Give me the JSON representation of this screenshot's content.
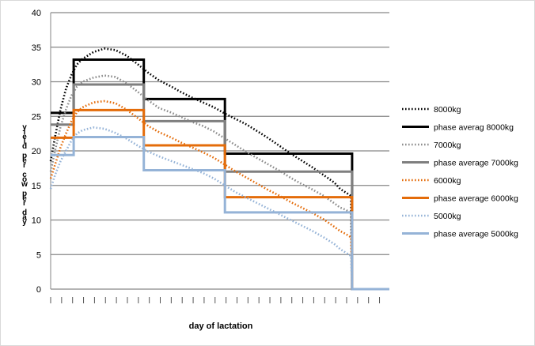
{
  "chart_data": {
    "type": "line",
    "title": "",
    "xlabel": "day of lactation",
    "ylabel": "yield per cow per day",
    "ylim": [
      0,
      40
    ],
    "yticks": [
      0,
      5,
      10,
      15,
      20,
      25,
      30,
      35,
      40
    ],
    "xlim": [
      1,
      310
    ],
    "grid": true,
    "legend_position": "right",
    "series": [
      {
        "name": "8000kg",
        "style": "dotted",
        "color": "#000000",
        "points": [
          [
            1,
            18.5
          ],
          [
            5,
            22
          ],
          [
            10,
            26
          ],
          [
            15,
            29
          ],
          [
            20,
            31
          ],
          [
            25,
            32.5
          ],
          [
            30,
            33.3
          ],
          [
            40,
            34.3
          ],
          [
            50,
            34.8
          ],
          [
            60,
            34.6
          ],
          [
            70,
            33.8
          ],
          [
            80,
            32.6
          ],
          [
            90,
            31.3
          ],
          [
            100,
            30.2
          ],
          [
            110,
            29.4
          ],
          [
            120,
            28.5
          ],
          [
            130,
            27.7
          ],
          [
            140,
            27
          ],
          [
            150,
            26.3
          ],
          [
            160,
            25.4
          ],
          [
            170,
            24.6
          ],
          [
            180,
            23.8
          ],
          [
            190,
            22.8
          ],
          [
            200,
            21.8
          ],
          [
            210,
            20.7
          ],
          [
            220,
            19.6
          ],
          [
            230,
            18.6
          ],
          [
            240,
            17.6
          ],
          [
            250,
            16.5
          ],
          [
            260,
            15.4
          ],
          [
            265,
            14.5
          ],
          [
            270,
            14
          ],
          [
            275,
            13.5
          ],
          [
            276,
            0
          ],
          [
            310,
            0
          ]
        ]
      },
      {
        "name": "phase averag 8000kg",
        "style": "step",
        "color": "#000000",
        "points": [
          [
            1,
            25.5
          ],
          [
            22,
            25.5
          ],
          [
            22,
            33.2
          ],
          [
            86,
            33.2
          ],
          [
            86,
            27.5
          ],
          [
            160,
            27.5
          ],
          [
            160,
            19.6
          ],
          [
            276,
            19.6
          ],
          [
            276,
            0
          ],
          [
            310,
            0
          ]
        ]
      },
      {
        "name": "7000kg",
        "style": "dotted",
        "color": "#8c8c8c",
        "points": [
          [
            1,
            17
          ],
          [
            5,
            20
          ],
          [
            10,
            23.5
          ],
          [
            15,
            26
          ],
          [
            20,
            28
          ],
          [
            25,
            29.3
          ],
          [
            30,
            30
          ],
          [
            40,
            30.6
          ],
          [
            50,
            30.9
          ],
          [
            60,
            30.7
          ],
          [
            70,
            29.8
          ],
          [
            80,
            28.6
          ],
          [
            90,
            27.3
          ],
          [
            100,
            26.2
          ],
          [
            110,
            25.6
          ],
          [
            120,
            24.9
          ],
          [
            130,
            24.2
          ],
          [
            140,
            23.6
          ],
          [
            150,
            22.8
          ],
          [
            160,
            21.8
          ],
          [
            170,
            20.8
          ],
          [
            180,
            19.8
          ],
          [
            190,
            18.9
          ],
          [
            200,
            18
          ],
          [
            210,
            17.1
          ],
          [
            220,
            16.1
          ],
          [
            230,
            15.2
          ],
          [
            240,
            14.4
          ],
          [
            250,
            13.5
          ],
          [
            260,
            12.4
          ],
          [
            265,
            11.8
          ],
          [
            270,
            11.5
          ],
          [
            275,
            11
          ],
          [
            276,
            0
          ],
          [
            310,
            0
          ]
        ]
      },
      {
        "name": "phase average 7000kg",
        "style": "step",
        "color": "#7f7f7f",
        "points": [
          [
            1,
            23.8
          ],
          [
            22,
            23.8
          ],
          [
            22,
            29.6
          ],
          [
            86,
            29.6
          ],
          [
            86,
            24.3
          ],
          [
            160,
            24.3
          ],
          [
            160,
            17
          ],
          [
            276,
            17
          ],
          [
            276,
            0
          ],
          [
            310,
            0
          ]
        ]
      },
      {
        "name": "6000kg",
        "style": "dotted",
        "color": "#e46c0a",
        "points": [
          [
            1,
            16
          ],
          [
            5,
            18
          ],
          [
            10,
            20.5
          ],
          [
            15,
            22.5
          ],
          [
            20,
            24.3
          ],
          [
            25,
            25.6
          ],
          [
            30,
            26.3
          ],
          [
            40,
            27
          ],
          [
            50,
            27.2
          ],
          [
            60,
            26.9
          ],
          [
            70,
            26
          ],
          [
            80,
            24.8
          ],
          [
            90,
            23.6
          ],
          [
            100,
            22.7
          ],
          [
            110,
            22
          ],
          [
            120,
            21.2
          ],
          [
            130,
            20.5
          ],
          [
            140,
            19.8
          ],
          [
            150,
            19
          ],
          [
            160,
            18
          ],
          [
            170,
            17
          ],
          [
            180,
            16.1
          ],
          [
            190,
            15.2
          ],
          [
            200,
            14.3
          ],
          [
            210,
            13.5
          ],
          [
            220,
            12.6
          ],
          [
            230,
            11.8
          ],
          [
            240,
            11
          ],
          [
            250,
            10.1
          ],
          [
            260,
            9
          ],
          [
            265,
            8.4
          ],
          [
            270,
            8
          ],
          [
            275,
            7.5
          ],
          [
            276,
            0
          ],
          [
            310,
            0
          ]
        ]
      },
      {
        "name": "phase average 6000kg",
        "style": "step",
        "color": "#e46c0a",
        "points": [
          [
            1,
            21.9
          ],
          [
            22,
            21.9
          ],
          [
            22,
            25.9
          ],
          [
            86,
            25.9
          ],
          [
            86,
            20.8
          ],
          [
            160,
            20.8
          ],
          [
            160,
            13.3
          ],
          [
            276,
            13.3
          ],
          [
            276,
            0
          ],
          [
            310,
            0
          ]
        ]
      },
      {
        "name": "5000kg",
        "style": "dotted",
        "color": "#95b3d7",
        "points": [
          [
            1,
            14.5
          ],
          [
            5,
            16.5
          ],
          [
            10,
            18.5
          ],
          [
            15,
            20
          ],
          [
            20,
            21.5
          ],
          [
            25,
            22.5
          ],
          [
            30,
            23
          ],
          [
            40,
            23.4
          ],
          [
            50,
            23.2
          ],
          [
            60,
            22.6
          ],
          [
            70,
            21.8
          ],
          [
            80,
            20.8
          ],
          [
            90,
            19.9
          ],
          [
            100,
            19.2
          ],
          [
            110,
            18.6
          ],
          [
            120,
            18
          ],
          [
            130,
            17.4
          ],
          [
            140,
            16.8
          ],
          [
            150,
            16
          ],
          [
            160,
            15
          ],
          [
            170,
            14
          ],
          [
            180,
            13.2
          ],
          [
            190,
            12.4
          ],
          [
            200,
            11.6
          ],
          [
            210,
            10.8
          ],
          [
            220,
            10
          ],
          [
            230,
            9.2
          ],
          [
            240,
            8.4
          ],
          [
            250,
            7.5
          ],
          [
            260,
            6.5
          ],
          [
            265,
            5.8
          ],
          [
            270,
            5.3
          ],
          [
            275,
            4.8
          ],
          [
            276,
            0
          ],
          [
            310,
            0
          ]
        ]
      },
      {
        "name": "phase average 5000kg",
        "style": "step",
        "color": "#95b3d7",
        "points": [
          [
            1,
            19.4
          ],
          [
            22,
            19.4
          ],
          [
            22,
            22
          ],
          [
            86,
            22
          ],
          [
            86,
            17.2
          ],
          [
            160,
            17.2
          ],
          [
            160,
            11.1
          ],
          [
            276,
            11.1
          ],
          [
            276,
            0
          ],
          [
            310,
            0
          ]
        ]
      }
    ]
  }
}
